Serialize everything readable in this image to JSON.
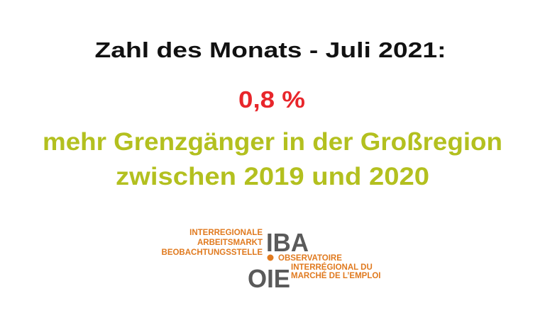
{
  "header": {
    "title": "Zahl des Monats - Juli 2021:"
  },
  "highlight": {
    "value": "0,8 %",
    "line1": "mehr Grenzgänger in der Großregion",
    "line2": "zwischen 2019 und 2020"
  },
  "logo": {
    "de_lines": [
      "INTERREGIONALE",
      "ARBEITSMARKT",
      "BEOBACHTUNGSSTELLE"
    ],
    "de_acronym": "IBA",
    "fr_lines": [
      "OBSERVATOIRE",
      "INTERRÉGIONAL DU",
      "MARCHÉ DE L’EMPLOI"
    ],
    "fr_acronym": "OIE"
  }
}
